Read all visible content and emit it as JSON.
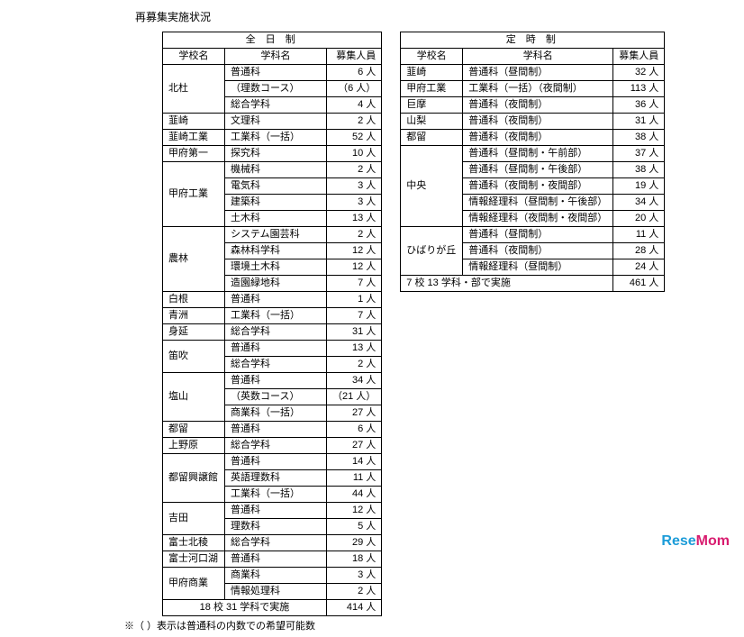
{
  "title": "再募集実施状況",
  "left": {
    "header": "全 日 制",
    "cols": [
      "学校名",
      "学科名",
      "募集人員"
    ],
    "rows": [
      {
        "school": "北杜",
        "rowspan": 3,
        "dept": "普通科",
        "num": "6 人"
      },
      {
        "dept": "（理数コース）",
        "num": "（6 人）"
      },
      {
        "dept": "総合学科",
        "num": "4 人"
      },
      {
        "school": "韮崎",
        "rowspan": 1,
        "dept": "文理科",
        "num": "2 人"
      },
      {
        "school": "韮崎工業",
        "rowspan": 1,
        "dept": "工業科（一括）",
        "num": "52 人"
      },
      {
        "school": "甲府第一",
        "rowspan": 1,
        "dept": "探究科",
        "num": "10 人"
      },
      {
        "school": "甲府工業",
        "rowspan": 4,
        "dept": "機械科",
        "num": "2 人"
      },
      {
        "dept": "電気科",
        "num": "3 人"
      },
      {
        "dept": "建築科",
        "num": "3 人"
      },
      {
        "dept": "土木科",
        "num": "13 人"
      },
      {
        "school": "農林",
        "rowspan": 4,
        "dept": "システム園芸科",
        "num": "2 人"
      },
      {
        "dept": "森林科学科",
        "num": "12 人"
      },
      {
        "dept": "環境土木科",
        "num": "12 人"
      },
      {
        "dept": "造園緑地科",
        "num": "7 人"
      },
      {
        "school": "白根",
        "rowspan": 1,
        "dept": "普通科",
        "num": "1 人"
      },
      {
        "school": "青洲",
        "rowspan": 1,
        "dept": "工業科（一括）",
        "num": "7 人"
      },
      {
        "school": "身延",
        "rowspan": 1,
        "dept": "総合学科",
        "num": "31 人"
      },
      {
        "school": "笛吹",
        "rowspan": 2,
        "dept": "普通科",
        "num": "13 人"
      },
      {
        "dept": "総合学科",
        "num": "2 人"
      },
      {
        "school": "塩山",
        "rowspan": 3,
        "dept": "普通科",
        "num": "34 人"
      },
      {
        "dept": "（英数コース）",
        "num": "（21 人）"
      },
      {
        "dept": "商業科（一括）",
        "num": "27 人"
      },
      {
        "school": "都留",
        "rowspan": 1,
        "dept": "普通科",
        "num": "6 人"
      },
      {
        "school": "上野原",
        "rowspan": 1,
        "dept": "総合学科",
        "num": "27 人"
      },
      {
        "school": "都留興譲館",
        "rowspan": 3,
        "dept": "普通科",
        "num": "14 人"
      },
      {
        "dept": "英語理数科",
        "num": "11 人"
      },
      {
        "dept": "工業科（一括）",
        "num": "44 人"
      },
      {
        "school": "吉田",
        "rowspan": 2,
        "dept": "普通科",
        "num": "12 人"
      },
      {
        "dept": "理数科",
        "num": "5 人"
      },
      {
        "school": "富士北稜",
        "rowspan": 1,
        "dept": "総合学科",
        "num": "29 人"
      },
      {
        "school": "富士河口湖",
        "rowspan": 1,
        "dept": "普通科",
        "num": "18 人"
      },
      {
        "school": "甲府商業",
        "rowspan": 2,
        "dept": "商業科",
        "num": "3 人"
      },
      {
        "dept": "情報処理科",
        "num": "2 人"
      }
    ],
    "summary_label": "18 校 31 学科で実施",
    "summary_num": "414 人"
  },
  "right": {
    "header": "定 時 制",
    "cols": [
      "学校名",
      "学科名",
      "募集人員"
    ],
    "rows": [
      {
        "school": "韮崎",
        "rowspan": 1,
        "dept": "普通科（昼間制）",
        "num": "32 人"
      },
      {
        "school": "甲府工業",
        "rowspan": 1,
        "dept": "工業科（一括）（夜間制）",
        "num": "113 人"
      },
      {
        "school": "巨摩",
        "rowspan": 1,
        "dept": "普通科（夜間制）",
        "num": "36 人"
      },
      {
        "school": "山梨",
        "rowspan": 1,
        "dept": "普通科（夜間制）",
        "num": "31 人"
      },
      {
        "school": "都留",
        "rowspan": 1,
        "dept": "普通科（夜間制）",
        "num": "38 人"
      },
      {
        "school": "中央",
        "rowspan": 5,
        "dept": "普通科（昼間制・午前部）",
        "num": "37 人"
      },
      {
        "dept": "普通科（昼間制・午後部）",
        "num": "38 人"
      },
      {
        "dept": "普通科（夜間制・夜間部）",
        "num": "19 人"
      },
      {
        "dept": "情報経理科（昼間制・午後部）",
        "num": "34 人"
      },
      {
        "dept": "情報経理科（夜間制・夜間部）",
        "num": "20 人"
      },
      {
        "school": "ひばりが丘",
        "rowspan": 3,
        "dept": "普通科（昼間制）",
        "num": "11 人"
      },
      {
        "dept": "普通科（夜間制）",
        "num": "28 人"
      },
      {
        "dept": "情報経理科（昼間制）",
        "num": "24 人"
      }
    ],
    "summary_label": "7 校 13 学科・部で実施",
    "summary_num": "461 人"
  },
  "note": "※（ ）表示は普通科の内数での希望可能数",
  "logo": {
    "rese": "Rese",
    "mom": "Mom"
  }
}
